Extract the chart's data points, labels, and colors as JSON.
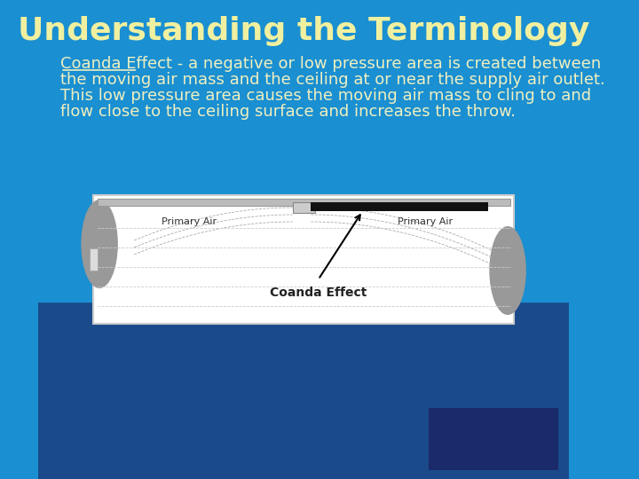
{
  "title": "Understanding the Terminology",
  "title_color": "#f0f0a0",
  "title_fontsize": 26,
  "bg_color": "#1a8fd1",
  "bg_color_bottom": "#1a4a8a",
  "body_text": "Coanda Effect - a negative or low pressure area is created between\nthe moving air mass and the ceiling at or near the supply air outlet.\nThis low pressure area causes the moving air mass to cling to and\nflow close to the ceiling surface and increases the throw.",
  "underline_text": "Coanda Effect",
  "body_color": "#f0f0c0",
  "body_fontsize": 13,
  "diagram_label": "Coanda Effect",
  "primary_air_label": "Primary Air",
  "diagram_bg": "#ffffff",
  "gray_color": "#999999",
  "dark_color": "#111111"
}
